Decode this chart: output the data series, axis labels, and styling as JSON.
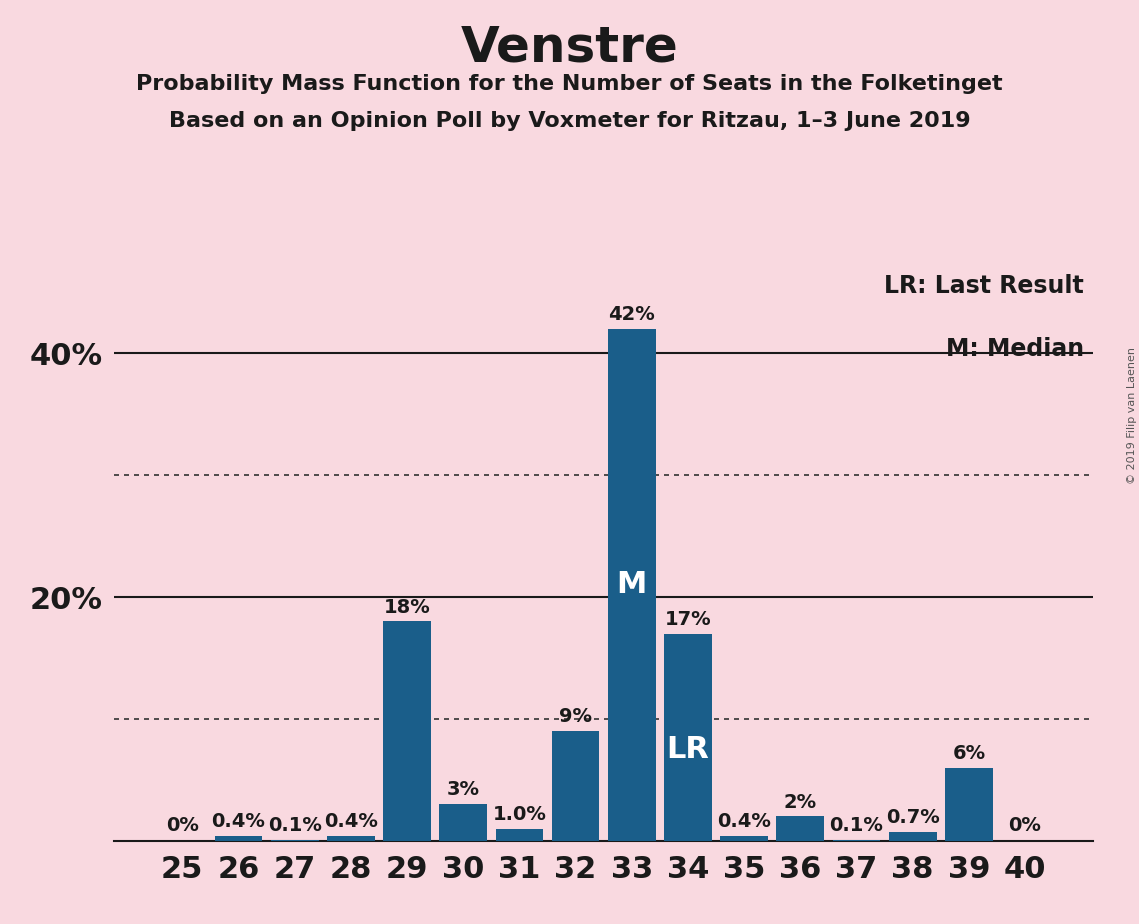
{
  "title": "Venstre",
  "subtitle1": "Probability Mass Function for the Number of Seats in the Folketinget",
  "subtitle2": "Based on an Opinion Poll by Voxmeter for Ritzau, 1–3 June 2019",
  "copyright": "© 2019 Filip van Laenen",
  "background_color": "#f9d9e0",
  "bar_color": "#1a5e8a",
  "categories": [
    25,
    26,
    27,
    28,
    29,
    30,
    31,
    32,
    33,
    34,
    35,
    36,
    37,
    38,
    39,
    40
  ],
  "values": [
    0.0,
    0.4,
    0.1,
    0.4,
    18.0,
    3.0,
    1.0,
    9.0,
    42.0,
    17.0,
    0.4,
    2.0,
    0.1,
    0.7,
    6.0,
    0.0
  ],
  "labels": [
    "0%",
    "0.4%",
    "0.1%",
    "0.4%",
    "18%",
    "3%",
    "1.0%",
    "9%",
    "42%",
    "17%",
    "0.4%",
    "2%",
    "0.1%",
    "0.7%",
    "6%",
    "0%"
  ],
  "median_seat": 33,
  "last_result_seat": 34,
  "ylim": [
    0,
    47
  ],
  "yticks": [
    20,
    40
  ],
  "ytick_labels": [
    "20%",
    "40%"
  ],
  "solid_gridlines": [
    20,
    40
  ],
  "dotted_gridlines": [
    10,
    30
  ],
  "legend_text1": "LR: Last Result",
  "legend_text2": "M: Median",
  "title_fontsize": 36,
  "subtitle_fontsize": 16,
  "axis_label_fontsize": 22,
  "bar_label_fontsize": 14,
  "marker_fontsize": 22
}
